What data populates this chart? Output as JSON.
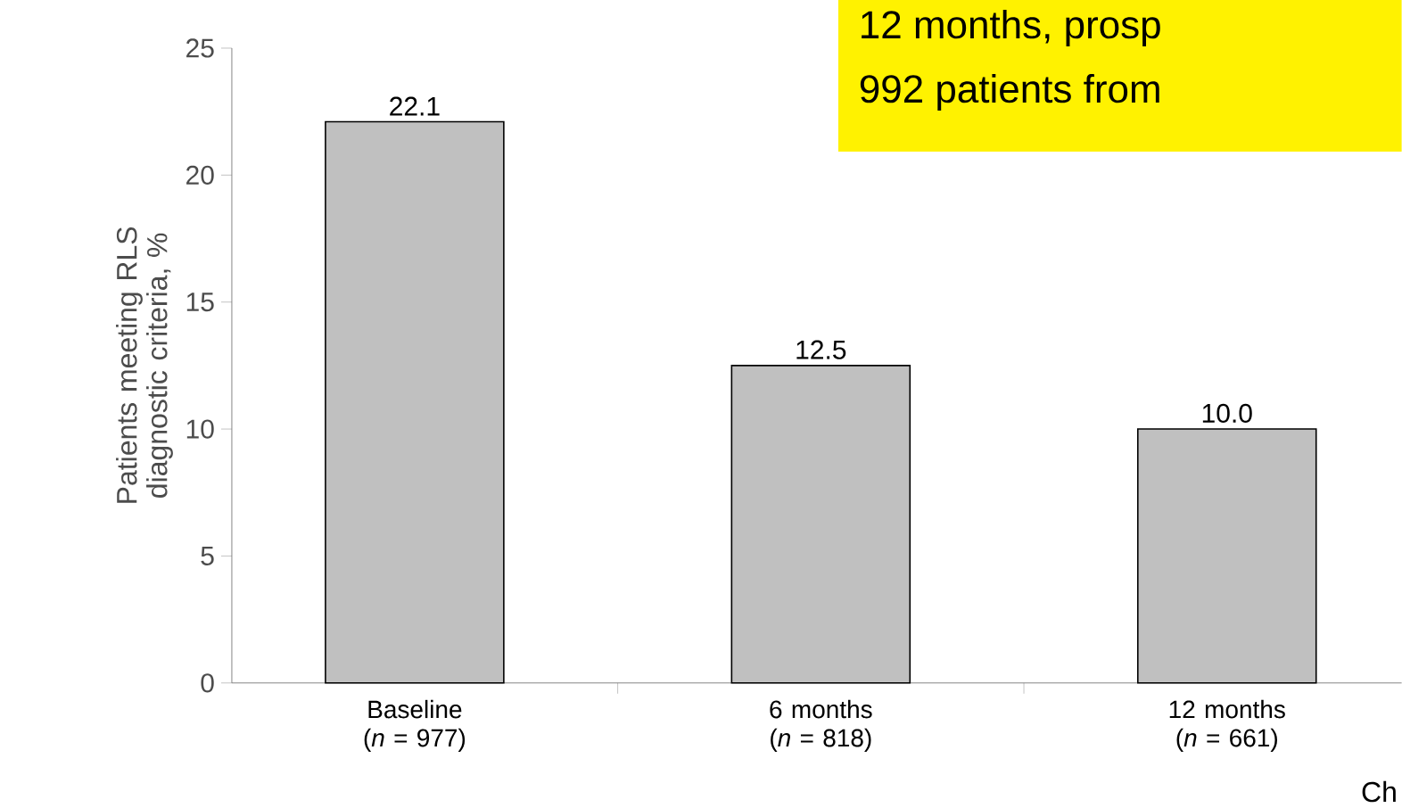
{
  "chart_data": {
    "type": "bar",
    "ylabel": "Patients meeting RLS diagnostic criteria, %",
    "categories": [
      "Baseline (*n* = 977)",
      "6 months (*n* = 818)",
      "12 months (*n* = 661)"
    ],
    "values": [
      22.1,
      12.5,
      10.0
    ],
    "value_labels": [
      "22.1",
      "12.5",
      "10.0"
    ],
    "color": "#c0c0c0",
    "ylim": [
      0,
      25
    ],
    "yticks": [
      0,
      5,
      10,
      15,
      20,
      25
    ],
    "grid": false,
    "annotations": [
      "12 months, prosp",
      "992 patients from",
      "Ch"
    ]
  }
}
